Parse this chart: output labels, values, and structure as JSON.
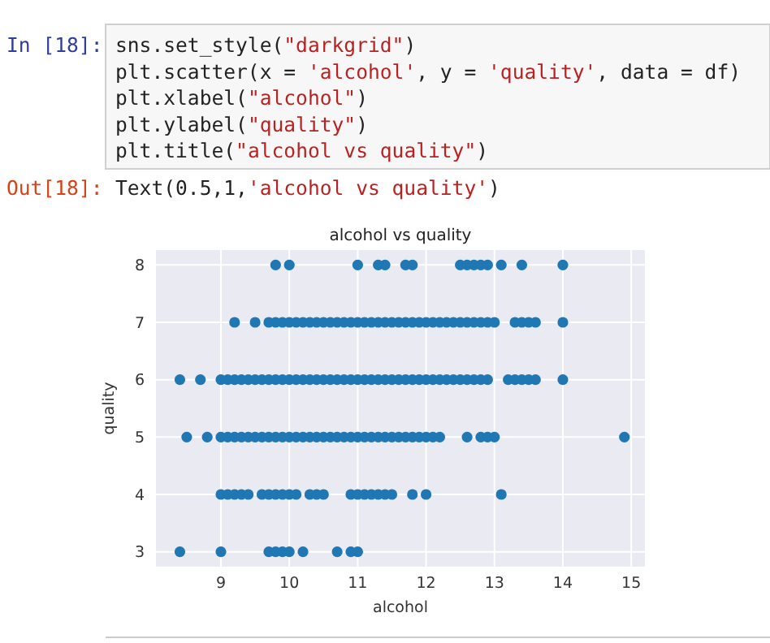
{
  "chart_data": {
    "type": "scatter",
    "title": "alcohol vs quality",
    "xlabel": "alcohol",
    "ylabel": "quality",
    "annotations": [
      "In [18]:",
      "sns.set_style(\"darkgrid\")",
      "plt.scatter(x = 'alcohol', y = 'quality', data = df)",
      "plt.xlabel(\"alcohol\")",
      "plt.ylabel(\"quality\")",
      "plt.title(\"alcohol vs quality\")",
      "Out[18]:",
      "Text(0.5,1,'alcohol vs quality')"
    ],
    "series": [
      {
        "color": "#1f77b4",
        "x": [
          9.8,
          10.0,
          11.0,
          11.3,
          11.4,
          11.7,
          11.8,
          12.5,
          12.6,
          12.7,
          12.8,
          12.9,
          13.1,
          13.4,
          14.0,
          9.2,
          9.5,
          9.7,
          9.8,
          9.9,
          10.0,
          10.1,
          10.2,
          10.3,
          10.4,
          10.5,
          10.6,
          10.7,
          10.8,
          10.9,
          11.0,
          11.1,
          11.2,
          11.3,
          11.4,
          11.5,
          11.6,
          11.7,
          11.8,
          11.9,
          12.0,
          12.1,
          12.2,
          12.3,
          12.4,
          12.5,
          12.6,
          12.7,
          12.8,
          12.9,
          13.0,
          13.3,
          13.4,
          13.5,
          13.6,
          14.0,
          8.4,
          8.7,
          9.0,
          9.1,
          9.2,
          9.3,
          9.4,
          9.5,
          9.6,
          9.7,
          9.8,
          9.9,
          10.0,
          10.1,
          10.2,
          10.3,
          10.4,
          10.5,
          10.6,
          10.7,
          10.8,
          10.9,
          11.0,
          11.1,
          11.2,
          11.3,
          11.4,
          11.5,
          11.6,
          11.7,
          11.8,
          11.9,
          12.0,
          12.1,
          12.2,
          12.3,
          12.4,
          12.5,
          12.6,
          12.7,
          12.8,
          12.9,
          13.2,
          13.3,
          13.4,
          13.5,
          13.6,
          14.0,
          8.5,
          8.8,
          9.0,
          9.1,
          9.2,
          9.3,
          9.4,
          9.5,
          9.6,
          9.7,
          9.8,
          9.9,
          10.0,
          10.1,
          10.2,
          10.3,
          10.4,
          10.5,
          10.6,
          10.7,
          10.8,
          10.9,
          11.0,
          11.1,
          11.2,
          11.3,
          11.4,
          11.5,
          11.6,
          11.7,
          11.8,
          11.9,
          12.0,
          12.1,
          12.2,
          12.6,
          12.8,
          12.9,
          13.0,
          14.9,
          9.0,
          9.1,
          9.2,
          9.3,
          9.4,
          9.6,
          9.7,
          9.8,
          9.9,
          10.0,
          10.1,
          10.3,
          10.4,
          10.5,
          10.9,
          11.0,
          11.1,
          11.2,
          11.3,
          11.4,
          11.5,
          11.8,
          12.0,
          13.1,
          8.4,
          9.0,
          9.7,
          9.8,
          9.9,
          10.0,
          10.2,
          10.7,
          10.9,
          11.0
        ],
        "values": [
          8,
          8,
          8,
          8,
          8,
          8,
          8,
          8,
          8,
          8,
          8,
          8,
          8,
          8,
          8,
          7,
          7,
          7,
          7,
          7,
          7,
          7,
          7,
          7,
          7,
          7,
          7,
          7,
          7,
          7,
          7,
          7,
          7,
          7,
          7,
          7,
          7,
          7,
          7,
          7,
          7,
          7,
          7,
          7,
          7,
          7,
          7,
          7,
          7,
          7,
          7,
          7,
          7,
          7,
          7,
          7,
          6,
          6,
          6,
          6,
          6,
          6,
          6,
          6,
          6,
          6,
          6,
          6,
          6,
          6,
          6,
          6,
          6,
          6,
          6,
          6,
          6,
          6,
          6,
          6,
          6,
          6,
          6,
          6,
          6,
          6,
          6,
          6,
          6,
          6,
          6,
          6,
          6,
          6,
          6,
          6,
          6,
          6,
          6,
          6,
          6,
          6,
          6,
          6,
          5,
          5,
          5,
          5,
          5,
          5,
          5,
          5,
          5,
          5,
          5,
          5,
          5,
          5,
          5,
          5,
          5,
          5,
          5,
          5,
          5,
          5,
          5,
          5,
          5,
          5,
          5,
          5,
          5,
          5,
          5,
          5,
          5,
          5,
          5,
          5,
          5,
          5,
          5,
          5,
          4,
          4,
          4,
          4,
          4,
          4,
          4,
          4,
          4,
          4,
          4,
          4,
          4,
          4,
          4,
          4,
          4,
          4,
          4,
          4,
          4,
          4,
          4,
          4,
          3,
          3,
          3,
          3,
          3,
          3,
          3,
          3,
          3,
          3
        ]
      }
    ],
    "xlim": [
      8.05,
      15.2
    ],
    "ylim": [
      2.74,
      8.26
    ],
    "xticks": [
      9,
      10,
      11,
      12,
      13,
      14,
      15
    ],
    "yticks": [
      3,
      4,
      5,
      6,
      7,
      8
    ],
    "grid": true,
    "marker": "circle"
  }
}
